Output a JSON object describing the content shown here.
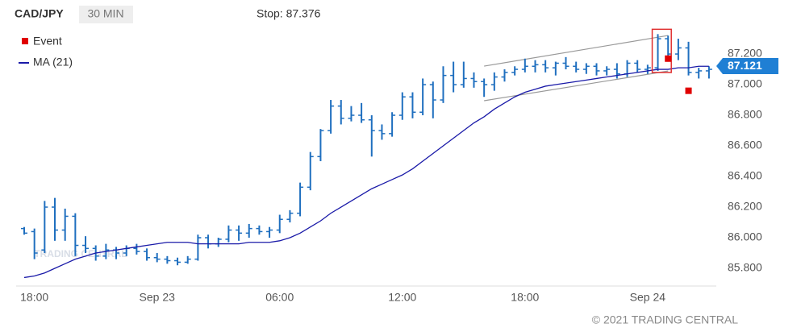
{
  "chart_data": {
    "type": "ohlc",
    "title": "CAD/JPY",
    "interval": "30 MIN",
    "stop_label": "Stop: 87.376",
    "watermark": "TRADING CENTRAL",
    "copyright": "© 2021 TRADING CENTRAL",
    "last_price": 87.121,
    "categories": [
      null,
      "18:00",
      null,
      null,
      null,
      null,
      null,
      null,
      null,
      null,
      null,
      null,
      null,
      "Sep 23",
      null,
      null,
      null,
      null,
      null,
      null,
      null,
      null,
      null,
      null,
      null,
      "06:00",
      null,
      null,
      null,
      null,
      null,
      null,
      null,
      null,
      null,
      null,
      null,
      "12:00",
      null,
      null,
      null,
      null,
      null,
      null,
      null,
      null,
      null,
      null,
      null,
      "18:00",
      null,
      null,
      null,
      null,
      null,
      null,
      null,
      null,
      null,
      null,
      null,
      "Sep 24",
      null,
      null,
      null,
      null,
      null,
      null
    ],
    "ohlc": {
      "color": "#1f6fbf",
      "open": [
        86.06,
        86.04,
        85.92,
        86.2,
        86.05,
        86.14,
        85.95,
        85.93,
        85.88,
        85.92,
        85.9,
        85.93,
        85.91,
        85.87,
        85.86,
        85.85,
        85.84,
        85.86,
        86.0,
        85.96,
        85.99,
        86.05,
        86.03,
        86.06,
        86.04,
        86.05,
        86.12,
        86.16,
        86.33,
        86.53,
        86.7,
        86.86,
        86.78,
        86.8,
        86.77,
        86.7,
        86.68,
        86.8,
        86.92,
        86.82,
        87.0,
        86.9,
        87.06,
        87.0,
        87.04,
        87.02,
        87.0,
        87.05,
        87.08,
        87.1,
        87.12,
        87.13,
        87.11,
        87.14,
        87.12,
        87.1,
        87.12,
        87.09,
        87.1,
        87.07,
        87.14,
        87.1,
        87.11,
        87.3,
        87.2,
        87.24,
        87.08,
        87.09
      ],
      "high": [
        86.07,
        86.06,
        86.24,
        86.26,
        86.19,
        86.16,
        86.01,
        85.95,
        85.96,
        85.94,
        85.95,
        85.96,
        85.93,
        85.9,
        85.88,
        85.87,
        85.88,
        86.02,
        86.02,
        86.0,
        86.08,
        86.08,
        86.09,
        86.08,
        86.07,
        86.15,
        86.18,
        86.36,
        86.56,
        86.71,
        86.9,
        86.9,
        86.86,
        86.88,
        86.8,
        86.74,
        86.82,
        86.95,
        86.95,
        87.04,
        87.02,
        87.12,
        87.15,
        87.15,
        87.08,
        87.04,
        87.08,
        87.1,
        87.12,
        87.17,
        87.16,
        87.16,
        87.15,
        87.18,
        87.15,
        87.14,
        87.14,
        87.12,
        87.14,
        87.16,
        87.16,
        87.13,
        87.33,
        87.32,
        87.3,
        87.28,
        87.11,
        87.12
      ],
      "low": [
        86.02,
        85.86,
        85.9,
        85.98,
        85.98,
        85.88,
        85.9,
        85.85,
        85.86,
        85.86,
        85.88,
        85.89,
        85.85,
        85.84,
        85.83,
        85.82,
        85.83,
        85.85,
        85.93,
        85.94,
        85.97,
        85.98,
        86.0,
        86.02,
        86.0,
        86.03,
        86.1,
        86.14,
        86.31,
        86.5,
        86.68,
        86.74,
        86.76,
        86.75,
        86.53,
        86.64,
        86.66,
        86.77,
        86.78,
        86.8,
        86.78,
        86.88,
        86.95,
        86.98,
        86.98,
        86.92,
        86.96,
        87.02,
        87.06,
        87.08,
        87.08,
        87.08,
        87.06,
        87.1,
        87.08,
        87.07,
        87.06,
        87.06,
        87.04,
        87.05,
        87.08,
        87.07,
        87.09,
        87.15,
        87.16,
        87.06,
        87.04,
        87.04
      ],
      "close": [
        86.03,
        85.9,
        86.2,
        86.05,
        86.14,
        85.95,
        85.93,
        85.88,
        85.92,
        85.9,
        85.93,
        85.91,
        85.87,
        85.86,
        85.85,
        85.84,
        85.86,
        86.0,
        85.96,
        85.99,
        86.05,
        86.03,
        86.06,
        86.04,
        86.05,
        86.12,
        86.16,
        86.33,
        86.53,
        86.7,
        86.86,
        86.78,
        86.8,
        86.77,
        86.7,
        86.68,
        86.8,
        86.92,
        86.82,
        87.0,
        86.9,
        87.06,
        87.0,
        87.04,
        87.02,
        87.0,
        87.05,
        87.08,
        87.1,
        87.12,
        87.13,
        87.11,
        87.14,
        87.12,
        87.1,
        87.12,
        87.09,
        87.1,
        87.07,
        87.14,
        87.1,
        87.11,
        87.3,
        87.2,
        87.24,
        87.08,
        87.09,
        87.1
      ]
    },
    "series": [
      {
        "name": "MA (21)",
        "color": "#1a1aa8",
        "values": [
          85.74,
          85.75,
          85.77,
          85.8,
          85.83,
          85.86,
          85.88,
          85.9,
          85.91,
          85.92,
          85.93,
          85.94,
          85.95,
          85.96,
          85.97,
          85.97,
          85.97,
          85.96,
          85.96,
          85.96,
          85.96,
          85.96,
          85.97,
          85.97,
          85.97,
          85.98,
          86.0,
          86.03,
          86.07,
          86.11,
          86.16,
          86.2,
          86.24,
          86.28,
          86.32,
          86.35,
          86.38,
          86.41,
          86.45,
          86.5,
          86.55,
          86.6,
          86.65,
          86.7,
          86.75,
          86.79,
          86.84,
          86.88,
          86.92,
          86.95,
          86.97,
          86.99,
          87.0,
          87.01,
          87.02,
          87.03,
          87.04,
          87.05,
          87.06,
          87.07,
          87.08,
          87.09,
          87.1,
          87.1,
          87.11,
          87.11,
          87.12,
          87.12
        ]
      },
      {
        "name": "Event",
        "color": "#e00000",
        "values": [
          null,
          null,
          null,
          null,
          null,
          null,
          null,
          null,
          null,
          null,
          null,
          null,
          null,
          null,
          null,
          null,
          null,
          null,
          null,
          null,
          null,
          null,
          null,
          null,
          null,
          null,
          null,
          null,
          null,
          null,
          null,
          null,
          null,
          null,
          null,
          null,
          null,
          null,
          null,
          null,
          null,
          null,
          null,
          null,
          null,
          null,
          null,
          null,
          null,
          null,
          null,
          null,
          null,
          null,
          null,
          null,
          null,
          null,
          null,
          null,
          null,
          null,
          null,
          87.17,
          null,
          86.96,
          null,
          null
        ]
      }
    ],
    "channel": [
      {
        "x": [
          45,
          63
        ],
        "y": [
          87.121,
          87.321
        ]
      },
      {
        "x": [
          45,
          63
        ],
        "y": [
          86.895,
          87.089
        ]
      }
    ],
    "ylim": [
      85.658,
      87.395
    ],
    "yticks": [
      {
        "value": 85.8,
        "label": "85.800"
      },
      {
        "value": 86,
        "label": "86.000"
      },
      {
        "value": 86.2,
        "label": "86.200"
      },
      {
        "value": 86.4,
        "label": "86.400"
      },
      {
        "value": 86.6,
        "label": "86.600"
      },
      {
        "value": 86.8,
        "label": "86.800"
      },
      {
        "value": 87,
        "label": "87.000"
      },
      {
        "value": 87.2,
        "label": "87.200"
      }
    ]
  }
}
